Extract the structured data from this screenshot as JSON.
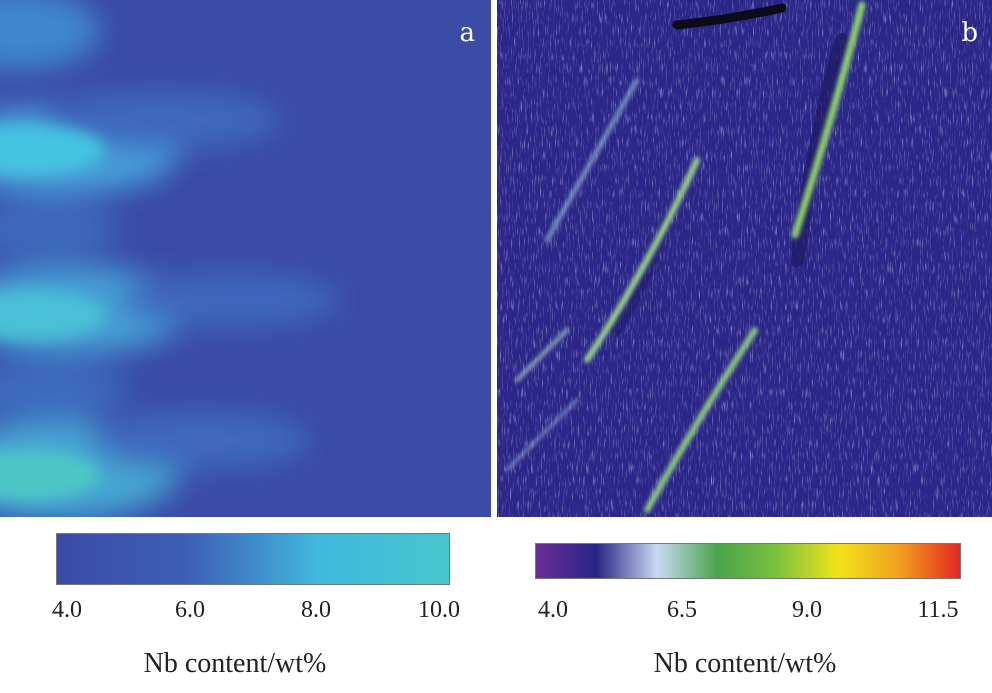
{
  "panel_a": {
    "letter": "a",
    "colorbar": {
      "colors": [
        "#3b4ba6",
        "#3d5fb6",
        "#41b8de",
        "#47c6cc"
      ],
      "ticks": [
        "4.0",
        "6.0",
        "8.0",
        "10.0"
      ],
      "label": "Nb content/wt%"
    }
  },
  "panel_b": {
    "letter": "b",
    "colorbar": {
      "colors": [
        "#6a2d96",
        "#2a2585",
        "#c9d9f2",
        "#4aa34a",
        "#7cc33d",
        "#f2e21a",
        "#f0a020",
        "#e2281f"
      ],
      "ticks": [
        "4.0",
        "6.5",
        "9.0",
        "11.5"
      ],
      "label": "Nb content/wt%"
    }
  }
}
